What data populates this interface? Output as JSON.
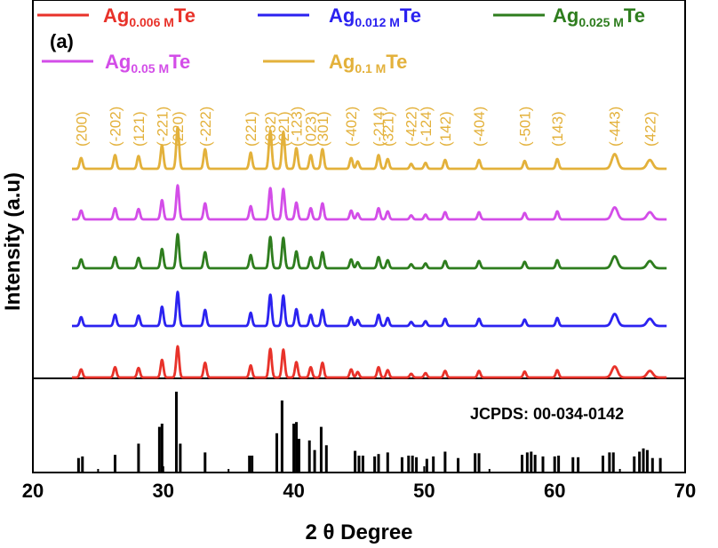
{
  "chart_data": {
    "type": "line",
    "panel_label": "(a)",
    "xlabel": "2 θ Degree",
    "ylabel": "Intensity (a.u)",
    "xlim": [
      20,
      70
    ],
    "x_ticks": [
      20,
      30,
      40,
      50,
      60,
      70
    ],
    "series": [
      {
        "name": "Ag",
        "sub": "0.006 M",
        "suffix": "Te",
        "color": "#e8322a",
        "peak_scale": 0.75
      },
      {
        "name": "Ag",
        "sub": "0.012 M",
        "suffix": "Te",
        "color": "#2b22f0",
        "peak_scale": 0.82
      },
      {
        "name": "Ag",
        "sub": "0.025 M",
        "suffix": "Te",
        "color": "#2e7d1e",
        "peak_scale": 0.82
      },
      {
        "name": "Ag",
        "sub": "0.05 M",
        "suffix": "Te",
        "color": "#d34de8",
        "peak_scale": 0.82
      },
      {
        "name": "Ag",
        "sub": "0.1 M",
        "suffix": "Te",
        "color": "#e3b13b",
        "peak_scale": 1.0
      }
    ],
    "peaks": [
      {
        "x": 23.7,
        "h": 0.22
      },
      {
        "x": 26.3,
        "h": 0.28
      },
      {
        "x": 28.1,
        "h": 0.26
      },
      {
        "x": 29.9,
        "h": 0.48
      },
      {
        "x": 31.1,
        "h": 0.85
      },
      {
        "x": 33.2,
        "h": 0.4
      },
      {
        "x": 36.7,
        "h": 0.33
      },
      {
        "x": 38.2,
        "h": 0.78
      },
      {
        "x": 39.2,
        "h": 0.76
      },
      {
        "x": 40.2,
        "h": 0.42
      },
      {
        "x": 41.3,
        "h": 0.28
      },
      {
        "x": 42.2,
        "h": 0.4
      },
      {
        "x": 44.4,
        "h": 0.22
      },
      {
        "x": 44.9,
        "h": 0.15
      },
      {
        "x": 46.5,
        "h": 0.28
      },
      {
        "x": 47.2,
        "h": 0.2
      },
      {
        "x": 49.0,
        "h": 0.1
      },
      {
        "x": 50.1,
        "h": 0.12
      },
      {
        "x": 51.6,
        "h": 0.18
      },
      {
        "x": 54.2,
        "h": 0.18
      },
      {
        "x": 57.7,
        "h": 0.16
      },
      {
        "x": 60.2,
        "h": 0.2
      },
      {
        "x": 64.6,
        "h": 0.3
      },
      {
        "x": 67.3,
        "h": 0.18
      }
    ],
    "peak_labels": [
      {
        "text": "(200)",
        "x": 23.7
      },
      {
        "text": "(-202)",
        "x": 26.3
      },
      {
        "text": "(121)",
        "x": 28.1
      },
      {
        "text": "(-221)",
        "x": 29.9
      },
      {
        "text": "(220)",
        "x": 31.1
      },
      {
        "text": "(-222)",
        "x": 33.2
      },
      {
        "text": "(221)",
        "x": 36.7
      },
      {
        "text": "(032)",
        "x": 38.2
      },
      {
        "text": "(221)",
        "x": 39.2
      },
      {
        "text": "(-123)",
        "x": 40.2
      },
      {
        "text": "(023)",
        "x": 41.3
      },
      {
        "text": "(301)",
        "x": 42.2
      },
      {
        "text": "(-402)",
        "x": 44.4
      },
      {
        "text": "(-214)",
        "x": 46.5
      },
      {
        "text": "(321)",
        "x": 47.2
      },
      {
        "text": "(-422)",
        "x": 49.0
      },
      {
        "text": "(-124)",
        "x": 50.1
      },
      {
        "text": "(142)",
        "x": 51.6
      },
      {
        "text": "(-404)",
        "x": 54.2
      },
      {
        "text": "(-501)",
        "x": 57.7
      },
      {
        "text": "(143)",
        "x": 60.2
      },
      {
        "text": "(-443)",
        "x": 64.6
      },
      {
        "text": "(422)",
        "x": 67.3
      }
    ],
    "reference": {
      "label": "JCPDS: 00-034-0142",
      "color": "#000000",
      "lines": [
        {
          "x": 23.5,
          "h": 0.17
        },
        {
          "x": 23.8,
          "h": 0.19
        },
        {
          "x": 26.3,
          "h": 0.21
        },
        {
          "x": 28.1,
          "h": 0.35
        },
        {
          "x": 29.7,
          "h": 0.56
        },
        {
          "x": 29.9,
          "h": 0.6
        },
        {
          "x": 31.0,
          "h": 1.0
        },
        {
          "x": 31.3,
          "h": 0.35
        },
        {
          "x": 33.2,
          "h": 0.24
        },
        {
          "x": 36.6,
          "h": 0.2
        },
        {
          "x": 36.8,
          "h": 0.2
        },
        {
          "x": 38.7,
          "h": 0.48
        },
        {
          "x": 39.1,
          "h": 0.89
        },
        {
          "x": 40.0,
          "h": 0.6
        },
        {
          "x": 40.2,
          "h": 0.62
        },
        {
          "x": 40.4,
          "h": 0.41
        },
        {
          "x": 41.2,
          "h": 0.39
        },
        {
          "x": 41.6,
          "h": 0.27
        },
        {
          "x": 42.1,
          "h": 0.56
        },
        {
          "x": 42.5,
          "h": 0.33
        },
        {
          "x": 44.7,
          "h": 0.26
        },
        {
          "x": 45.0,
          "h": 0.2
        },
        {
          "x": 45.3,
          "h": 0.2
        },
        {
          "x": 46.2,
          "h": 0.19
        },
        {
          "x": 46.5,
          "h": 0.22
        },
        {
          "x": 47.2,
          "h": 0.24
        },
        {
          "x": 48.3,
          "h": 0.18
        },
        {
          "x": 48.8,
          "h": 0.2
        },
        {
          "x": 49.1,
          "h": 0.2
        },
        {
          "x": 49.4,
          "h": 0.18
        },
        {
          "x": 50.2,
          "h": 0.16
        },
        {
          "x": 50.7,
          "h": 0.19
        },
        {
          "x": 51.6,
          "h": 0.25
        },
        {
          "x": 52.6,
          "h": 0.17
        },
        {
          "x": 53.9,
          "h": 0.23
        },
        {
          "x": 54.2,
          "h": 0.23
        },
        {
          "x": 57.5,
          "h": 0.21
        },
        {
          "x": 57.9,
          "h": 0.24
        },
        {
          "x": 58.2,
          "h": 0.25
        },
        {
          "x": 58.5,
          "h": 0.21
        },
        {
          "x": 59.1,
          "h": 0.19
        },
        {
          "x": 60.0,
          "h": 0.19
        },
        {
          "x": 60.3,
          "h": 0.2
        },
        {
          "x": 61.4,
          "h": 0.18
        },
        {
          "x": 61.8,
          "h": 0.18
        },
        {
          "x": 63.7,
          "h": 0.2
        },
        {
          "x": 64.2,
          "h": 0.24
        },
        {
          "x": 64.5,
          "h": 0.24
        },
        {
          "x": 66.1,
          "h": 0.19
        },
        {
          "x": 66.5,
          "h": 0.25
        },
        {
          "x": 66.8,
          "h": 0.29
        },
        {
          "x": 67.1,
          "h": 0.27
        },
        {
          "x": 67.5,
          "h": 0.17
        },
        {
          "x": 68.1,
          "h": 0.17
        }
      ]
    }
  }
}
